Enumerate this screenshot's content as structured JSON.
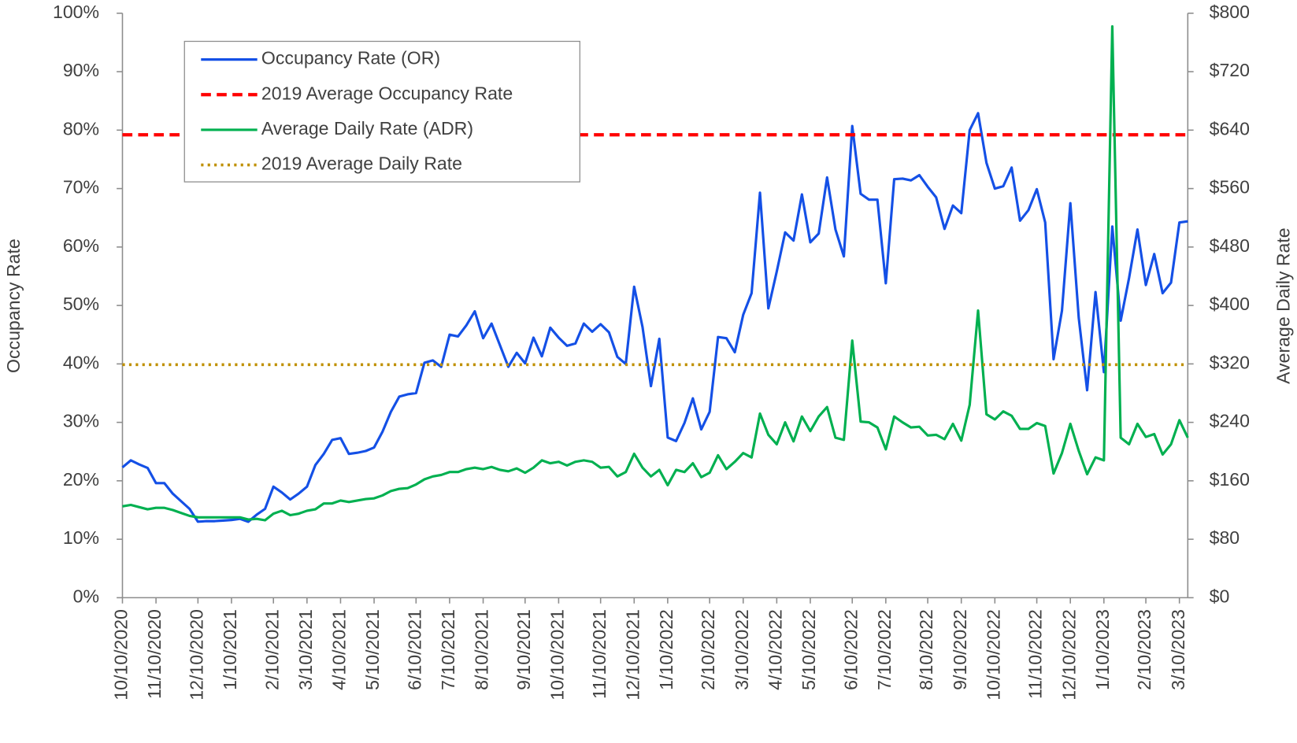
{
  "chart_data": {
    "type": "line",
    "ylabel": "Occupancy Rate",
    "y2label": "Average Daily Rate",
    "legend": "upper left",
    "categories": [
      "10/10/2020",
      null,
      null,
      null,
      "11/10/2020",
      null,
      null,
      null,
      null,
      "12/10/2020",
      null,
      null,
      null,
      "1/10/2021",
      null,
      null,
      null,
      null,
      "2/10/2021",
      null,
      null,
      null,
      "3/10/2021",
      null,
      null,
      null,
      "4/10/2021",
      null,
      null,
      null,
      "5/10/2021",
      null,
      null,
      null,
      null,
      "6/10/2021",
      null,
      null,
      null,
      "7/10/2021",
      null,
      null,
      null,
      "8/10/2021",
      null,
      null,
      null,
      null,
      "9/10/2021",
      null,
      null,
      null,
      "10/10/2021",
      null,
      null,
      null,
      null,
      "11/10/2021",
      null,
      null,
      null,
      "12/10/2021",
      null,
      null,
      null,
      "1/10/2022",
      null,
      null,
      null,
      null,
      "2/10/2022",
      null,
      null,
      null,
      "3/10/2022",
      null,
      null,
      null,
      "4/10/2022",
      null,
      null,
      null,
      "5/10/2022",
      null,
      null,
      null,
      null,
      "6/10/2022",
      null,
      null,
      null,
      "7/10/2022",
      null,
      null,
      null,
      null,
      "8/10/2022",
      null,
      null,
      null,
      "9/10/2022",
      null,
      null,
      null,
      "10/10/2022",
      null,
      null,
      null,
      null,
      "11/10/2022",
      null,
      null,
      null,
      "12/10/2022",
      null,
      null,
      null,
      "1/10/2023",
      null,
      null,
      null,
      null,
      "2/10/2023",
      null,
      null,
      null,
      "3/10/2023",
      null
    ],
    "series": [
      {
        "name": "Occupancy Rate (OR)",
        "color": "#1450e6",
        "style": "solid",
        "axis": "y",
        "values": [
          22.3,
          23.5,
          22.8,
          22.2,
          19.6,
          19.6,
          17.8,
          16.5,
          15.2,
          13,
          13.1,
          13.1,
          13.2,
          13.3,
          13.5,
          13,
          14.2,
          15.2,
          19,
          18,
          16.8,
          17.8,
          19,
          22.7,
          24.6,
          27,
          27.3,
          24.6,
          24.8,
          25.1,
          25.7,
          28.4,
          31.8,
          34.4,
          34.8,
          35,
          40.2,
          40.6,
          39.5,
          45,
          44.7,
          46.6,
          49,
          44.4,
          46.9,
          43.2,
          39.5,
          41.9,
          40.1,
          44.5,
          41.3,
          46.2,
          44.5,
          43.1,
          43.5,
          46.9,
          45.5,
          46.8,
          45.4,
          41.2,
          40,
          53.2,
          46.3,
          36.2,
          44.3,
          27.4,
          26.8,
          29.9,
          34.1,
          28.8,
          31.8,
          44.6,
          44.4,
          42,
          48.4,
          52.1,
          69.3,
          49.5,
          55.8,
          62.5,
          61.1,
          69,
          60.8,
          62.3,
          71.9,
          63,
          58.4,
          80.7,
          69.1,
          68.1,
          68.1,
          53.8,
          71.6,
          71.7,
          71.4,
          72.3,
          70.3,
          68.5,
          63.1,
          67.1,
          65.8,
          80,
          82.9,
          74.4,
          70,
          70.4,
          73.6,
          64.5,
          66.3,
          69.9,
          64.2,
          40.8,
          49.1,
          67.5,
          47.9,
          35.5,
          52.3,
          38.6,
          63.5,
          47.4,
          54.7,
          63,
          53.5,
          58.8,
          52.1,
          53.9,
          64.2,
          64.4
        ]
      },
      {
        "name": "2019 Average Occupancy Rate",
        "color": "#ff0000",
        "style": "dashed",
        "axis": "y",
        "value": 79.2
      },
      {
        "name": "Average Daily Rate (ADR)",
        "color": "#00b050",
        "style": "solid",
        "axis": "y2",
        "values": [
          125,
          127,
          124,
          121,
          123,
          123,
          120,
          116,
          112,
          110,
          110,
          110,
          110,
          110,
          110,
          107,
          108,
          106,
          115,
          119,
          113,
          115,
          119,
          121,
          129,
          129,
          133,
          131,
          133,
          135,
          136,
          140,
          146,
          149,
          150,
          155,
          162,
          166,
          168,
          172,
          172,
          176,
          178,
          176,
          179,
          175,
          173,
          177,
          171,
          178,
          188,
          184,
          186,
          181,
          186,
          188,
          186,
          178,
          179,
          166,
          172,
          197,
          178,
          166,
          175,
          154,
          175,
          172,
          184,
          165,
          171,
          195,
          176,
          186,
          198,
          192,
          252,
          223,
          210,
          240,
          214,
          248,
          228,
          248,
          261,
          219,
          216,
          352,
          241,
          240,
          233,
          203,
          248,
          240,
          233,
          234,
          222,
          223,
          217,
          238,
          215,
          264,
          393,
          251,
          244,
          255,
          249,
          231,
          231,
          239,
          235,
          170,
          198,
          238,
          201,
          169,
          192,
          188,
          782,
          219,
          210,
          238,
          220,
          224,
          196,
          210,
          243,
          219
        ]
      },
      {
        "name": "2019 Average Daily Rate",
        "color": "#bf9000",
        "style": "dotted",
        "axis": "y2",
        "value": 319
      }
    ],
    "ylim": [
      0,
      100
    ],
    "yticks": [
      {
        "value": 0,
        "label": "0%"
      },
      {
        "value": 10,
        "label": "10%"
      },
      {
        "value": 20,
        "label": "20%"
      },
      {
        "value": 30,
        "label": "30%"
      },
      {
        "value": 40,
        "label": "40%"
      },
      {
        "value": 50,
        "label": "50%"
      },
      {
        "value": 60,
        "label": "60%"
      },
      {
        "value": 70,
        "label": "70%"
      },
      {
        "value": 80,
        "label": "80%"
      },
      {
        "value": 90,
        "label": "90%"
      },
      {
        "value": 100,
        "label": "100%"
      }
    ],
    "y2lim": [
      0,
      800
    ],
    "y2ticks": [
      {
        "value": 0,
        "label": "$0"
      },
      {
        "value": 80,
        "label": "$80"
      },
      {
        "value": 160,
        "label": "$160"
      },
      {
        "value": 240,
        "label": "$240"
      },
      {
        "value": 320,
        "label": "$320"
      },
      {
        "value": 400,
        "label": "$400"
      },
      {
        "value": 480,
        "label": "$480"
      },
      {
        "value": 560,
        "label": "$560"
      },
      {
        "value": 640,
        "label": "$640"
      },
      {
        "value": 720,
        "label": "$720"
      },
      {
        "value": 800,
        "label": "$800"
      }
    ]
  }
}
